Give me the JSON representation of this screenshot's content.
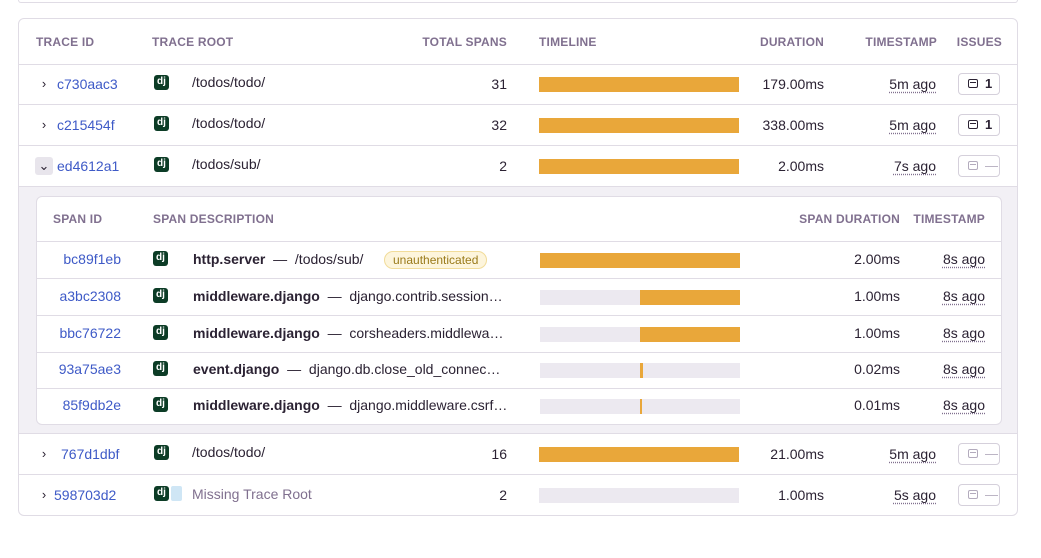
{
  "table": {
    "columns": {
      "trace_id": "TRACE ID",
      "trace_root": "TRACE ROOT",
      "total_spans": "TOTAL SPANS",
      "timeline": "TIMELINE",
      "duration": "DURATION",
      "timestamp": "TIMESTAMP",
      "issues": "ISSUES"
    },
    "rows": [
      {
        "trace_id": "c730aac3",
        "root": "/todos/todo/",
        "spans": "31",
        "duration": "179.00ms",
        "timestamp": "5m ago",
        "issues": "1",
        "timeline_fill": [
          0,
          1
        ]
      },
      {
        "trace_id": "c215454f",
        "root": "/todos/todo/",
        "spans": "32",
        "duration": "338.00ms",
        "timestamp": "5m ago",
        "issues": "1",
        "timeline_fill": [
          0,
          1
        ]
      },
      {
        "trace_id": "ed4612a1",
        "root": "/todos/sub/",
        "spans": "2",
        "duration": "2.00ms",
        "timestamp": "7s ago",
        "issues": "—",
        "timeline_fill": [
          0,
          1
        ]
      },
      {
        "trace_id": "767d1dbf",
        "root": "/todos/todo/",
        "spans": "16",
        "duration": "21.00ms",
        "timestamp": "5m ago",
        "issues": "—",
        "timeline_fill": [
          0,
          1
        ]
      },
      {
        "trace_id": "598703d2",
        "root": "Missing Trace Root",
        "spans": "2",
        "duration": "1.00ms",
        "timestamp": "5s ago",
        "issues": "—",
        "timeline_fill": [
          0,
          0
        ]
      }
    ]
  },
  "spans": {
    "columns": {
      "span_id": "SPAN ID",
      "span_description": "SPAN DESCRIPTION",
      "span_duration": "SPAN DURATION",
      "timestamp": "TIMESTAMP"
    },
    "rows": [
      {
        "span_id": "bc89f1eb",
        "op": "http.server",
        "desc": "/todos/sub/",
        "tag": "unauthenticated",
        "duration": "2.00ms",
        "timestamp": "8s ago",
        "timeline_fill": [
          0,
          1
        ]
      },
      {
        "span_id": "a3bc2308",
        "op": "middleware.django",
        "desc": "django.contrib.session…",
        "duration": "1.00ms",
        "timestamp": "8s ago",
        "timeline_fill": [
          0.5,
          1
        ]
      },
      {
        "span_id": "bbc76722",
        "op": "middleware.django",
        "desc": "corsheaders.middlewa…",
        "duration": "1.00ms",
        "timestamp": "8s ago",
        "timeline_fill": [
          0.5,
          1
        ]
      },
      {
        "span_id": "93a75ae3",
        "op": "event.django",
        "desc": "django.db.close_old_connec…",
        "duration": "0.02ms",
        "timestamp": "8s ago",
        "timeline_fill": [
          0.5,
          0.515
        ]
      },
      {
        "span_id": "85f9db2e",
        "op": "middleware.django",
        "desc": "django.middleware.csrf…",
        "duration": "0.01ms",
        "timestamp": "8s ago",
        "timeline_fill": [
          0.5,
          0.51
        ]
      }
    ]
  },
  "icons": {
    "platform": "django-icon",
    "issues": "issues-icon",
    "expand": "chevron-right-icon",
    "collapse": "chevron-down-icon"
  },
  "colors": {
    "accent_bar": "#e9a73a",
    "link": "#3e5ac7"
  },
  "platform_icon_text": "dj",
  "separator": "—"
}
